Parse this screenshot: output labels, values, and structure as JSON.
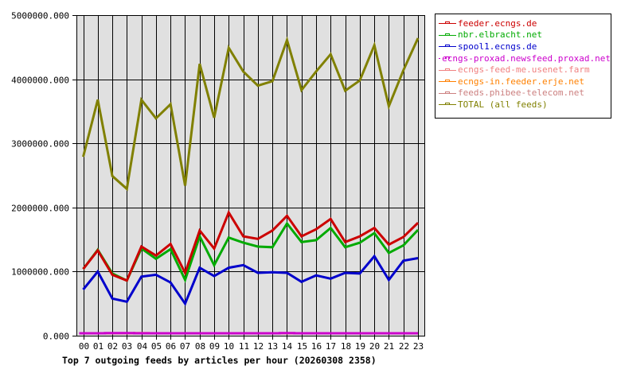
{
  "chart_data": {
    "type": "line",
    "title": "Top 7 outgoing feeds by articles per hour (20260308 2358)",
    "xlabel": "",
    "ylabel": "",
    "ylim": [
      0,
      5000000
    ],
    "grid": true,
    "legend_position": "right",
    "y_ticks": [
      "0.000",
      "1000000.000",
      "2000000.000",
      "3000000.000",
      "4000000.000",
      "5000000.000"
    ],
    "categories": [
      "00",
      "01",
      "02",
      "03",
      "04",
      "05",
      "06",
      "07",
      "08",
      "09",
      "10",
      "11",
      "12",
      "13",
      "14",
      "15",
      "16",
      "17",
      "18",
      "19",
      "20",
      "21",
      "22",
      "23"
    ],
    "series": [
      {
        "name": "feeder.ecngs.de",
        "color": "#cc0000",
        "values": [
          1040000,
          1330000,
          950000,
          860000,
          1390000,
          1250000,
          1430000,
          980000,
          1640000,
          1360000,
          1920000,
          1550000,
          1510000,
          1640000,
          1870000,
          1550000,
          1660000,
          1820000,
          1460000,
          1550000,
          1680000,
          1420000,
          1540000,
          1760000
        ]
      },
      {
        "name": "nbr.elbracht.net",
        "color": "#00aa00",
        "values": [
          1040000,
          1340000,
          970000,
          860000,
          1360000,
          1200000,
          1350000,
          870000,
          1550000,
          1100000,
          1530000,
          1450000,
          1390000,
          1380000,
          1750000,
          1460000,
          1490000,
          1680000,
          1380000,
          1450000,
          1600000,
          1290000,
          1410000,
          1650000
        ]
      },
      {
        "name": "spool1.ecngs.de",
        "color": "#0000cc",
        "values": [
          720000,
          1000000,
          580000,
          530000,
          920000,
          950000,
          830000,
          500000,
          1060000,
          930000,
          1060000,
          1100000,
          980000,
          990000,
          980000,
          840000,
          940000,
          890000,
          980000,
          970000,
          1240000,
          870000,
          1170000,
          1210000
        ]
      },
      {
        "name": "ecngs-proxad.newsfeed.proxad.net",
        "color": "#cc00cc",
        "values": [
          20000,
          20000,
          40000,
          40000,
          20000,
          20000,
          20000,
          30000,
          30000,
          30000,
          30000,
          30000,
          30000,
          30000,
          40000,
          30000,
          20000,
          20000,
          20000,
          20000,
          30000,
          20000,
          20000,
          20000
        ]
      },
      {
        "name": "ecngs-feed-me.usenet.farm",
        "color": "#f08080",
        "values": [
          20000,
          20000,
          20000,
          20000,
          40000,
          20000,
          20000,
          20000,
          20000,
          20000,
          20000,
          20000,
          20000,
          20000,
          20000,
          20000,
          20000,
          20000,
          20000,
          20000,
          20000,
          20000,
          20000,
          20000
        ]
      },
      {
        "name": "ecngs-in.feeder.erje.net",
        "color": "#ff8000",
        "values": [
          10000,
          10000,
          10000,
          10000,
          10000,
          10000,
          10000,
          10000,
          10000,
          10000,
          10000,
          10000,
          10000,
          10000,
          10000,
          10000,
          10000,
          10000,
          10000,
          10000,
          10000,
          10000,
          10000,
          10000
        ]
      },
      {
        "name": "feeds.phibee-telecom.net",
        "color": "#cc8080",
        "values": [
          15000,
          15000,
          15000,
          15000,
          15000,
          15000,
          15000,
          15000,
          15000,
          15000,
          15000,
          15000,
          15000,
          15000,
          15000,
          15000,
          15000,
          15000,
          15000,
          15000,
          15000,
          15000,
          15000,
          15000
        ]
      },
      {
        "name": "TOTAL (all feeds)",
        "color": "#808000",
        "values": [
          2790000,
          3680000,
          2490000,
          2290000,
          3680000,
          3390000,
          3610000,
          2340000,
          4240000,
          3400000,
          4490000,
          4120000,
          3900000,
          3970000,
          4610000,
          3830000,
          4120000,
          4390000,
          3820000,
          3980000,
          4530000,
          3580000,
          4140000,
          4640000
        ]
      }
    ]
  },
  "legend": {
    "items": [
      {
        "label": "feeder.ecngs.de",
        "color": "#cc0000"
      },
      {
        "label": "nbr.elbracht.net",
        "color": "#00aa00"
      },
      {
        "label": "spool1.ecngs.de",
        "color": "#0000cc"
      },
      {
        "label": "ecngs-proxad.newsfeed.proxad.net",
        "color": "#cc00cc"
      },
      {
        "label": "ecngs-feed-me.usenet.farm",
        "color": "#f08080"
      },
      {
        "label": "ecngs-in.feeder.erje.net",
        "color": "#ff8000"
      },
      {
        "label": "feeds.phibee-telecom.net",
        "color": "#cc8080"
      },
      {
        "label": "TOTAL (all feeds)",
        "color": "#808000"
      }
    ]
  },
  "title": "Top 7 outgoing feeds by articles per hour (20260308 2358)"
}
